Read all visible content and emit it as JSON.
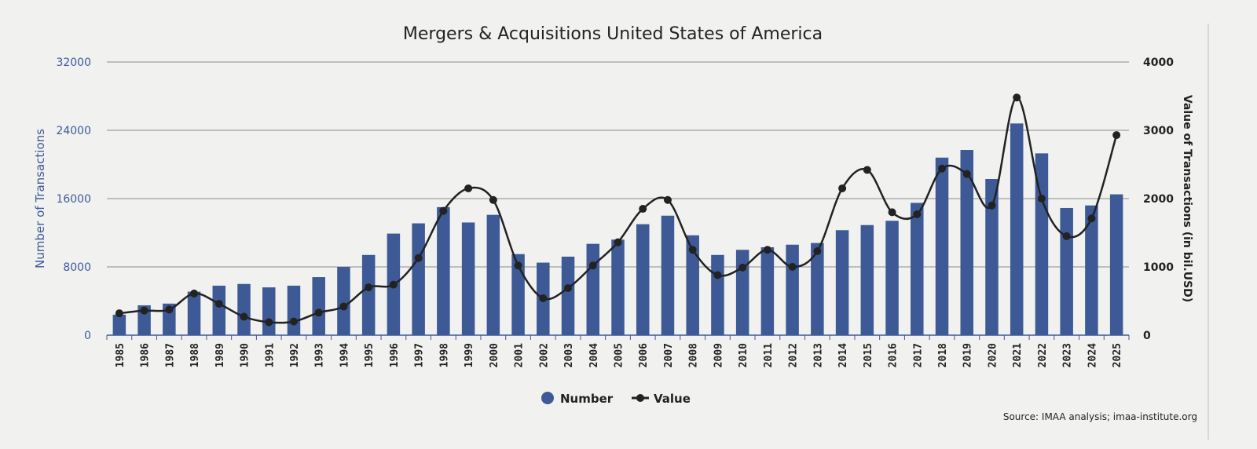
{
  "chart_data": {
    "type": "bar+line",
    "title": "Mergers & Acquisitions United States of America",
    "ylabel_left": "Number of Transactions",
    "ylabel_right": "Value of Transactions (in bil.USD)",
    "ylim_left": [
      0,
      32000
    ],
    "ylim_right": [
      0,
      4000
    ],
    "yticks_left": [
      "0",
      "8000",
      "16000",
      "24000",
      "32000"
    ],
    "yticks_right": [
      "0",
      "1000",
      "2000",
      "3000",
      "4000"
    ],
    "categories": [
      "1985",
      "1986",
      "1987",
      "1988",
      "1989",
      "1990",
      "1991",
      "1992",
      "1993",
      "1994",
      "1995",
      "1996",
      "1997",
      "1998",
      "1999",
      "2000",
      "2001",
      "2002",
      "2003",
      "2004",
      "2005",
      "2006",
      "2007",
      "2008",
      "2009",
      "2010",
      "2011",
      "2012",
      "2013",
      "2014",
      "2015",
      "2016",
      "2017",
      "2018",
      "2019",
      "2020",
      "2021",
      "2022",
      "2023",
      "2024",
      "2025"
    ],
    "series": [
      {
        "name": "Number",
        "axis": "left",
        "type": "bar",
        "color": "#3d5a96",
        "values": [
          2400,
          3500,
          3700,
          5100,
          5800,
          6000,
          5600,
          5800,
          6800,
          8000,
          9400,
          11900,
          13100,
          15000,
          13200,
          14100,
          9500,
          8500,
          9200,
          10700,
          11200,
          13000,
          14000,
          11700,
          9400,
          10000,
          10300,
          10600,
          10800,
          12300,
          12900,
          13400,
          15500,
          20800,
          21700,
          18300,
          24800,
          21300,
          14900,
          15200,
          16500
        ]
      },
      {
        "name": "Value",
        "axis": "right",
        "type": "line",
        "color": "#222222",
        "values": [
          320,
          360,
          375,
          610,
          460,
          270,
          190,
          200,
          330,
          420,
          700,
          740,
          1130,
          1820,
          2150,
          1980,
          1020,
          540,
          690,
          1020,
          1360,
          1850,
          1980,
          1250,
          880,
          990,
          1250,
          1000,
          1230,
          2150,
          2420,
          1800,
          1770,
          2440,
          2360,
          1900,
          3480,
          2000,
          1450,
          1710,
          2930
        ]
      }
    ],
    "legend": [
      "Number",
      "Value"
    ],
    "legend_position": "bottom-center",
    "source": "Source: IMAA analysis; imaa-institute.org"
  }
}
